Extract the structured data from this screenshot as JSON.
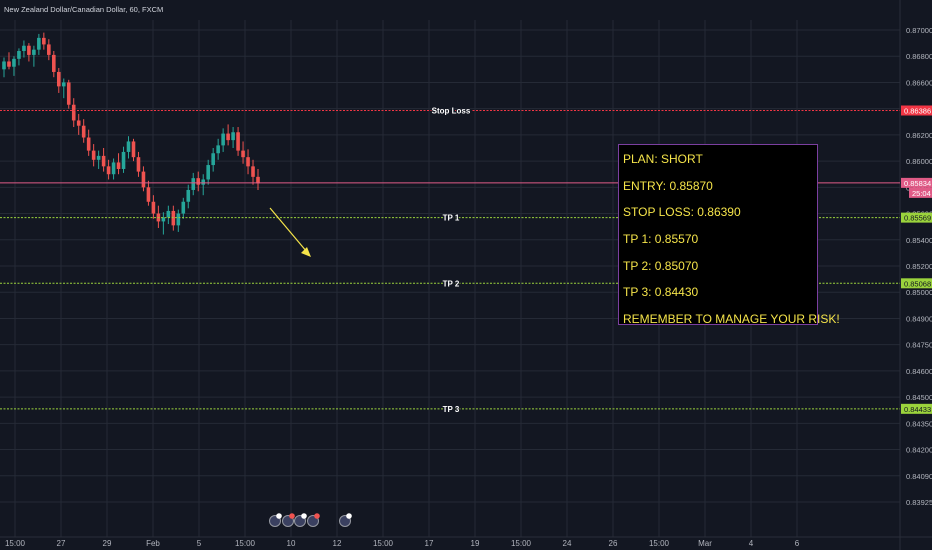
{
  "header": {
    "symbol_title": "New Zealand Dollar/Canadian Dollar, 60, FXCM"
  },
  "colors": {
    "background": "#131722",
    "grid": "#252a36",
    "candle_up": "#26a69a",
    "candle_down": "#ef5350",
    "stop_loss_line": "#f23645",
    "take_profit_line": "#9bd33c",
    "current_price_line": "#e05b87",
    "arrow": "#f5e44a",
    "plan_text": "#f5e44a",
    "plan_border": "#7b3fa0"
  },
  "price_axis": {
    "ticks": [
      "0.87000",
      "0.86800",
      "0.86600",
      "0.86400",
      "0.86200",
      "0.86000",
      "0.85800",
      "0.85600",
      "0.85400",
      "0.85200",
      "0.85000",
      "0.84900",
      "0.84750",
      "0.84600",
      "0.84500",
      "0.84350",
      "0.84200",
      "0.84090",
      "0.83925"
    ],
    "tick_values": [
      0.87,
      0.868,
      0.866,
      0.864,
      0.862,
      0.86,
      0.858,
      0.856,
      0.854,
      0.852,
      0.85,
      0.849,
      0.8475,
      0.846,
      0.845,
      0.8435,
      0.842,
      0.8409,
      0.83925
    ],
    "markers": {
      "stop_loss": {
        "label": "0.86386",
        "value": 0.86386
      },
      "current_price": {
        "label": "0.85834",
        "value": 0.85834,
        "countdown": "25:04"
      },
      "tp1": {
        "label": "0.85569",
        "value": 0.85569
      },
      "tp2": {
        "label": "0.85068",
        "value": 0.85068
      },
      "tp3": {
        "label": "0.84433",
        "value": 0.84433
      }
    }
  },
  "time_axis": {
    "labels": [
      "15:00",
      "27",
      "29",
      "Feb",
      "5",
      "15:00",
      "10",
      "12",
      "15:00",
      "17",
      "19",
      "15:00",
      "24",
      "26",
      "15:00",
      "Mar",
      "4",
      "6"
    ]
  },
  "levels": [
    {
      "key": "stop_loss",
      "label": "Stop Loss",
      "value": 0.86386
    },
    {
      "key": "tp1",
      "label": "TP 1",
      "value": 0.85569
    },
    {
      "key": "tp2",
      "label": "TP 2",
      "value": 0.85068
    },
    {
      "key": "tp3",
      "label": "TP 3",
      "value": 0.84433
    }
  ],
  "plan": {
    "title": "PLAN: SHORT",
    "entry": "ENTRY: 0.85870",
    "stop_loss": "STOP LOSS: 0.86390",
    "tp1": "TP 1: 0.85570",
    "tp2": "TP 2: 0.85070",
    "tp3": "TP 3: 0.84430",
    "reminder": "REMEMBER TO MANAGE YOUR RISK!"
  },
  "event_icons": [
    "flag-icon",
    "calendar-event-icon",
    "flag-icon",
    "calendar-event-icon",
    "flag-icon"
  ],
  "chart_data": {
    "type": "candlestick",
    "candles": [
      [
        0.867,
        0.8679,
        0.8664,
        0.8676
      ],
      [
        0.8676,
        0.8683,
        0.867,
        0.8672
      ],
      [
        0.8672,
        0.868,
        0.8665,
        0.8678
      ],
      [
        0.8678,
        0.8686,
        0.8673,
        0.8684
      ],
      [
        0.8684,
        0.8692,
        0.8679,
        0.8688
      ],
      [
        0.8688,
        0.869,
        0.8676,
        0.8681
      ],
      [
        0.8681,
        0.8688,
        0.8672,
        0.8685
      ],
      [
        0.8685,
        0.8697,
        0.8681,
        0.8694
      ],
      [
        0.8694,
        0.8698,
        0.8685,
        0.8689
      ],
      [
        0.8689,
        0.8693,
        0.8677,
        0.8681
      ],
      [
        0.8681,
        0.8684,
        0.8664,
        0.8668
      ],
      [
        0.8668,
        0.8671,
        0.8652,
        0.8657
      ],
      [
        0.8657,
        0.8663,
        0.8648,
        0.866
      ],
      [
        0.866,
        0.8662,
        0.864,
        0.8643
      ],
      [
        0.8643,
        0.8648,
        0.8626,
        0.8631
      ],
      [
        0.8631,
        0.8636,
        0.862,
        0.8627
      ],
      [
        0.8627,
        0.8632,
        0.8614,
        0.8618
      ],
      [
        0.8618,
        0.8624,
        0.8604,
        0.8608
      ],
      [
        0.8608,
        0.8613,
        0.8596,
        0.8601
      ],
      [
        0.8601,
        0.8608,
        0.8594,
        0.8604
      ],
      [
        0.8604,
        0.861,
        0.8592,
        0.8596
      ],
      [
        0.8596,
        0.8601,
        0.8586,
        0.859
      ],
      [
        0.859,
        0.8602,
        0.8586,
        0.8599
      ],
      [
        0.8599,
        0.8606,
        0.859,
        0.8594
      ],
      [
        0.8594,
        0.8611,
        0.8591,
        0.8607
      ],
      [
        0.8607,
        0.8619,
        0.8602,
        0.8615
      ],
      [
        0.8615,
        0.8617,
        0.86,
        0.8603
      ],
      [
        0.8603,
        0.8607,
        0.8588,
        0.8592
      ],
      [
        0.8592,
        0.8596,
        0.8577,
        0.858
      ],
      [
        0.858,
        0.8585,
        0.8566,
        0.8569
      ],
      [
        0.8569,
        0.8574,
        0.8556,
        0.856
      ],
      [
        0.856,
        0.8566,
        0.8549,
        0.8554
      ],
      [
        0.8554,
        0.8561,
        0.8544,
        0.8557
      ],
      [
        0.8557,
        0.8566,
        0.8552,
        0.8562
      ],
      [
        0.8562,
        0.8566,
        0.8547,
        0.8551
      ],
      [
        0.8551,
        0.8563,
        0.8546,
        0.856
      ],
      [
        0.856,
        0.8572,
        0.8556,
        0.8569
      ],
      [
        0.8569,
        0.8582,
        0.8564,
        0.8578
      ],
      [
        0.8578,
        0.8591,
        0.8574,
        0.8587
      ],
      [
        0.8587,
        0.8592,
        0.8577,
        0.8582
      ],
      [
        0.8582,
        0.859,
        0.8574,
        0.8586
      ],
      [
        0.8586,
        0.8601,
        0.8582,
        0.8597
      ],
      [
        0.8597,
        0.861,
        0.8592,
        0.8606
      ],
      [
        0.8606,
        0.8617,
        0.8601,
        0.8612
      ],
      [
        0.8612,
        0.8625,
        0.8607,
        0.8621
      ],
      [
        0.8621,
        0.8628,
        0.8612,
        0.8616
      ],
      [
        0.8616,
        0.8626,
        0.861,
        0.8622
      ],
      [
        0.8622,
        0.8626,
        0.8604,
        0.8608
      ],
      [
        0.8608,
        0.8615,
        0.8598,
        0.8603
      ],
      [
        0.8603,
        0.8609,
        0.859,
        0.8596
      ],
      [
        0.8596,
        0.8601,
        0.8582,
        0.8588
      ],
      [
        0.8588,
        0.8594,
        0.8578,
        0.8583
      ]
    ],
    "ylim": [
      0.83925,
      0.8709
    ]
  }
}
